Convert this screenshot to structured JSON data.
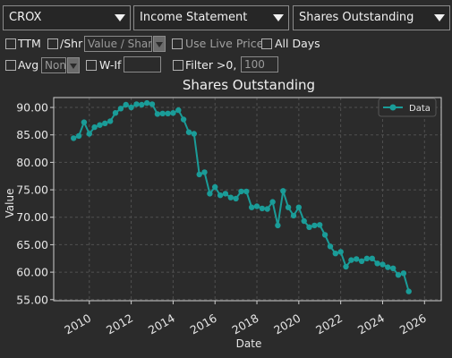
{
  "controls": {
    "ticker": "CROX",
    "statement": "Income Statement",
    "metric": "Shares Outstanding",
    "ttm_label": "TTM",
    "per_share_label": "/Shr",
    "per_share_placeholder": "Value / Share",
    "live_price_label": "Use Live Price",
    "all_days_label": "All Days",
    "avg_label": "Avg",
    "avg_value": "Non",
    "wif_label": "W-If",
    "wif_value": "",
    "filter_label": "Filter >0, <",
    "filter_value": "100"
  },
  "chart_data": {
    "type": "line",
    "title": "Shares Outstanding",
    "xlabel": "Date",
    "ylabel": "Value",
    "xlim": [
      2008.3,
      2026.8
    ],
    "ylim": [
      54.8,
      91.8
    ],
    "xticks": [
      2010,
      2012,
      2014,
      2016,
      2018,
      2020,
      2022,
      2024,
      2026
    ],
    "xtick_labels": [
      "2010",
      "2012",
      "2014",
      "2016",
      "2018",
      "2020",
      "2022",
      "2024",
      "2026"
    ],
    "yticks": [
      55,
      60,
      65,
      70,
      75,
      80,
      85,
      90
    ],
    "ytick_labels": [
      "55.00",
      "60.00",
      "65.00",
      "70.00",
      "75.00",
      "80.00",
      "85.00",
      "90.00"
    ],
    "grid": true,
    "legend": "top-right",
    "color": "#1a9c98",
    "series": [
      {
        "name": "Data",
        "x": [
          2009.25,
          2009.5,
          2009.75,
          2010.0,
          2010.25,
          2010.5,
          2010.75,
          2011.0,
          2011.25,
          2011.5,
          2011.75,
          2012.0,
          2012.25,
          2012.5,
          2012.75,
          2013.0,
          2013.25,
          2013.5,
          2013.75,
          2014.0,
          2014.25,
          2014.5,
          2014.75,
          2015.0,
          2015.25,
          2015.5,
          2015.75,
          2016.0,
          2016.25,
          2016.5,
          2016.75,
          2017.0,
          2017.25,
          2017.5,
          2017.75,
          2018.0,
          2018.25,
          2018.5,
          2018.75,
          2019.0,
          2019.25,
          2019.5,
          2019.75,
          2020.0,
          2020.25,
          2020.5,
          2020.75,
          2021.0,
          2021.25,
          2021.5,
          2021.75,
          2022.0,
          2022.25,
          2022.5,
          2022.75,
          2023.0,
          2023.25,
          2023.5,
          2023.75,
          2024.0,
          2024.25,
          2024.5,
          2024.75,
          2025.0,
          2025.25
        ],
        "y": [
          84.4,
          84.8,
          87.3,
          85.2,
          86.4,
          86.8,
          87.1,
          87.5,
          89.0,
          89.8,
          90.5,
          90.0,
          90.6,
          90.5,
          90.8,
          90.6,
          88.8,
          88.9,
          88.9,
          89.0,
          89.5,
          87.8,
          85.5,
          85.2,
          77.8,
          78.2,
          74.3,
          75.5,
          74.0,
          74.3,
          73.6,
          73.4,
          74.7,
          74.7,
          71.8,
          72.0,
          71.6,
          71.5,
          72.8,
          68.5,
          74.8,
          71.8,
          70.3,
          71.8,
          69.3,
          68.2,
          68.5,
          68.6,
          66.8,
          64.7,
          63.4,
          63.7,
          61.0,
          62.2,
          62.4,
          62.0,
          62.5,
          62.5,
          61.6,
          61.4,
          60.9,
          60.7,
          59.5,
          59.8,
          56.5
        ]
      }
    ]
  }
}
